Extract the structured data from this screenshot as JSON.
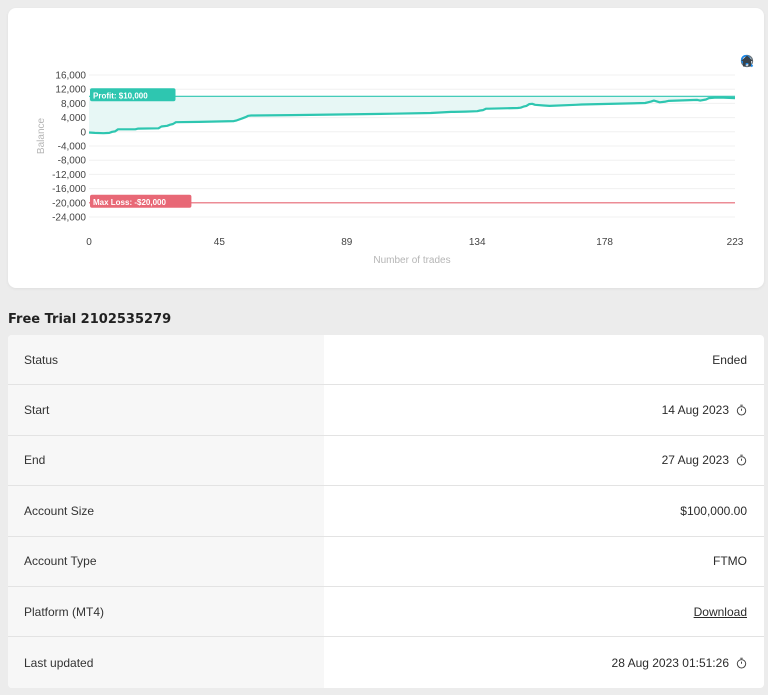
{
  "chart_data": {
    "type": "line",
    "xlabel": "Number of trades",
    "ylabel": "Balance",
    "xlim": [
      0,
      223
    ],
    "ylim": [
      -24000,
      16000
    ],
    "x_ticks": [
      "0",
      "45",
      "89",
      "134",
      "178",
      "223"
    ],
    "y_ticks": [
      "16,000",
      "12,000",
      "8,000",
      "4,000",
      "0",
      "-4,000",
      "-8,000",
      "-12,000",
      "-16,000",
      "-20,000",
      "-24,000"
    ],
    "grid": true,
    "series": [
      {
        "points": [
          [
            0,
            -200
          ],
          [
            2,
            -300
          ],
          [
            5,
            -400
          ],
          [
            7,
            -300
          ],
          [
            8,
            0
          ],
          [
            9,
            100
          ],
          [
            10,
            700
          ],
          [
            16,
            700
          ],
          [
            17,
            900
          ],
          [
            24,
            1000
          ],
          [
            25,
            1500
          ],
          [
            27,
            1700
          ],
          [
            28,
            2000
          ],
          [
            29,
            2200
          ],
          [
            30,
            2700
          ],
          [
            38,
            2800
          ],
          [
            50,
            3000
          ],
          [
            51,
            3200
          ],
          [
            53,
            3800
          ],
          [
            54,
            4100
          ],
          [
            55,
            4500
          ],
          [
            56,
            4600
          ],
          [
            70,
            4700
          ],
          [
            89,
            4900
          ],
          [
            105,
            5100
          ],
          [
            118,
            5300
          ],
          [
            125,
            5600
          ],
          [
            126,
            5600
          ],
          [
            130,
            5700
          ],
          [
            134,
            5800
          ],
          [
            135,
            6000
          ],
          [
            136,
            6100
          ],
          [
            137,
            6500
          ],
          [
            138,
            6500
          ],
          [
            148,
            6700
          ],
          [
            149,
            6800
          ],
          [
            150,
            7100
          ],
          [
            151,
            7300
          ],
          [
            152,
            7800
          ],
          [
            153,
            7900
          ],
          [
            154,
            7600
          ],
          [
            157,
            7400
          ],
          [
            159,
            7300
          ],
          [
            168,
            7600
          ],
          [
            170,
            7700
          ],
          [
            192,
            8100
          ],
          [
            194,
            8500
          ],
          [
            195,
            8800
          ],
          [
            197,
            8300
          ],
          [
            199,
            8500
          ],
          [
            200,
            8700
          ],
          [
            210,
            9000
          ],
          [
            211,
            8800
          ],
          [
            213,
            9100
          ],
          [
            214,
            9500
          ],
          [
            216,
            9600
          ],
          [
            219,
            9600
          ],
          [
            223,
            9500
          ]
        ]
      }
    ],
    "annotations": [
      {
        "label": "Profit: $10,000",
        "y": 10000,
        "color": "#2ec6b0"
      },
      {
        "label": "Max Loss: -$20,000",
        "y": -20000,
        "color": "#e86876"
      }
    ],
    "line_color": "#2ec6b0",
    "fill_color": "#e7f7f5"
  },
  "toolbar": {
    "icons": [
      "zoom-in-icon",
      "zoom-out-icon",
      "search-icon",
      "home-icon"
    ]
  },
  "account": {
    "title": "Free Trial 2102535279",
    "rows": [
      {
        "label": "Status",
        "value": "Ended"
      },
      {
        "label": "Start",
        "value": "14 Aug 2023"
      },
      {
        "label": "End",
        "value": "27 Aug 2023"
      },
      {
        "label": "Account Size",
        "value": "$100,000.00"
      },
      {
        "label": "Account Type",
        "value": "FTMO"
      },
      {
        "label": "Platform (MT4)",
        "value": "Download"
      },
      {
        "label": "Last updated",
        "value": "28 Aug 2023 01:51:26"
      }
    ]
  }
}
